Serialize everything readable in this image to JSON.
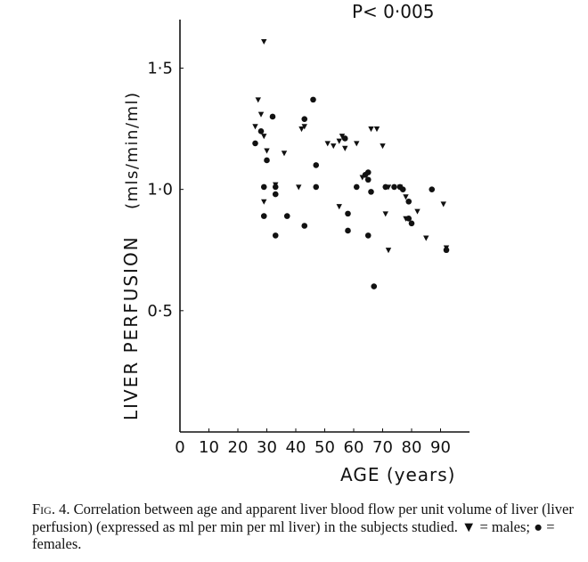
{
  "chart_data": {
    "type": "scatter",
    "annotation": "P< 0·005",
    "xlabel": "AGE (years)",
    "ylabel": "LIVER PERFUSION",
    "ylabel_units": "(mls/min/ml)",
    "xlim": [
      0,
      100
    ],
    "ylim": [
      0,
      1.7
    ],
    "x_ticks": [
      0,
      10,
      20,
      30,
      40,
      50,
      60,
      70,
      80,
      90
    ],
    "x_tick_labels": [
      "0",
      "10",
      "20",
      "30",
      "40",
      "50",
      "60",
      "70",
      "80",
      "90"
    ],
    "y_ticks": [
      0.5,
      1.0,
      1.5
    ],
    "y_tick_labels": [
      "0·5",
      "1·0",
      "1·5"
    ],
    "grid": false,
    "series": [
      {
        "name": "males",
        "marker": "triangle-down",
        "points": [
          [
            29,
            1.61
          ],
          [
            27,
            1.37
          ],
          [
            26,
            1.26
          ],
          [
            28,
            1.31
          ],
          [
            29,
            1.22
          ],
          [
            30,
            1.16
          ],
          [
            29,
            0.95
          ],
          [
            33,
            1.02
          ],
          [
            36,
            1.15
          ],
          [
            41,
            1.01
          ],
          [
            42,
            1.25
          ],
          [
            43,
            1.26
          ],
          [
            51,
            1.19
          ],
          [
            53,
            1.18
          ],
          [
            55,
            1.2
          ],
          [
            56,
            1.22
          ],
          [
            57,
            1.17
          ],
          [
            61,
            1.19
          ],
          [
            55,
            0.93
          ],
          [
            63,
            1.05
          ],
          [
            66,
            1.25
          ],
          [
            68,
            1.25
          ],
          [
            70,
            1.18
          ],
          [
            72,
            1.01
          ],
          [
            71,
            0.9
          ],
          [
            72,
            0.75
          ],
          [
            76,
            1.01
          ],
          [
            78,
            0.88
          ],
          [
            78,
            0.97
          ],
          [
            82,
            0.91
          ],
          [
            85,
            0.8
          ],
          [
            91,
            0.94
          ],
          [
            92,
            0.76
          ]
        ]
      },
      {
        "name": "females",
        "marker": "circle",
        "points": [
          [
            26,
            1.19
          ],
          [
            28,
            1.24
          ],
          [
            29,
            1.01
          ],
          [
            30,
            1.12
          ],
          [
            29,
            0.89
          ],
          [
            32,
            1.3
          ],
          [
            33,
            1.01
          ],
          [
            33,
            0.98
          ],
          [
            33,
            0.81
          ],
          [
            37,
            0.89
          ],
          [
            43,
            1.29
          ],
          [
            43,
            0.85
          ],
          [
            46,
            1.37
          ],
          [
            47,
            1.1
          ],
          [
            47,
            1.01
          ],
          [
            57,
            1.21
          ],
          [
            58,
            0.9
          ],
          [
            58,
            0.83
          ],
          [
            61,
            1.01
          ],
          [
            64,
            1.06
          ],
          [
            65,
            1.07
          ],
          [
            65,
            1.04
          ],
          [
            65,
            0.81
          ],
          [
            66,
            0.99
          ],
          [
            67,
            0.6
          ],
          [
            71,
            1.01
          ],
          [
            74,
            1.01
          ],
          [
            76,
            1.01
          ],
          [
            77,
            1.0
          ],
          [
            79,
            0.88
          ],
          [
            79,
            0.95
          ],
          [
            80,
            0.86
          ],
          [
            87,
            1.0
          ],
          [
            92,
            0.75
          ]
        ]
      }
    ]
  },
  "caption": {
    "figure_label": "Fig. 4.",
    "text": "Correlation between age and apparent liver blood flow per unit volume of liver (liver perfusion) (expressed as ml per min per ml liver) in the subjects studied. ▼ = males; ● = females."
  }
}
